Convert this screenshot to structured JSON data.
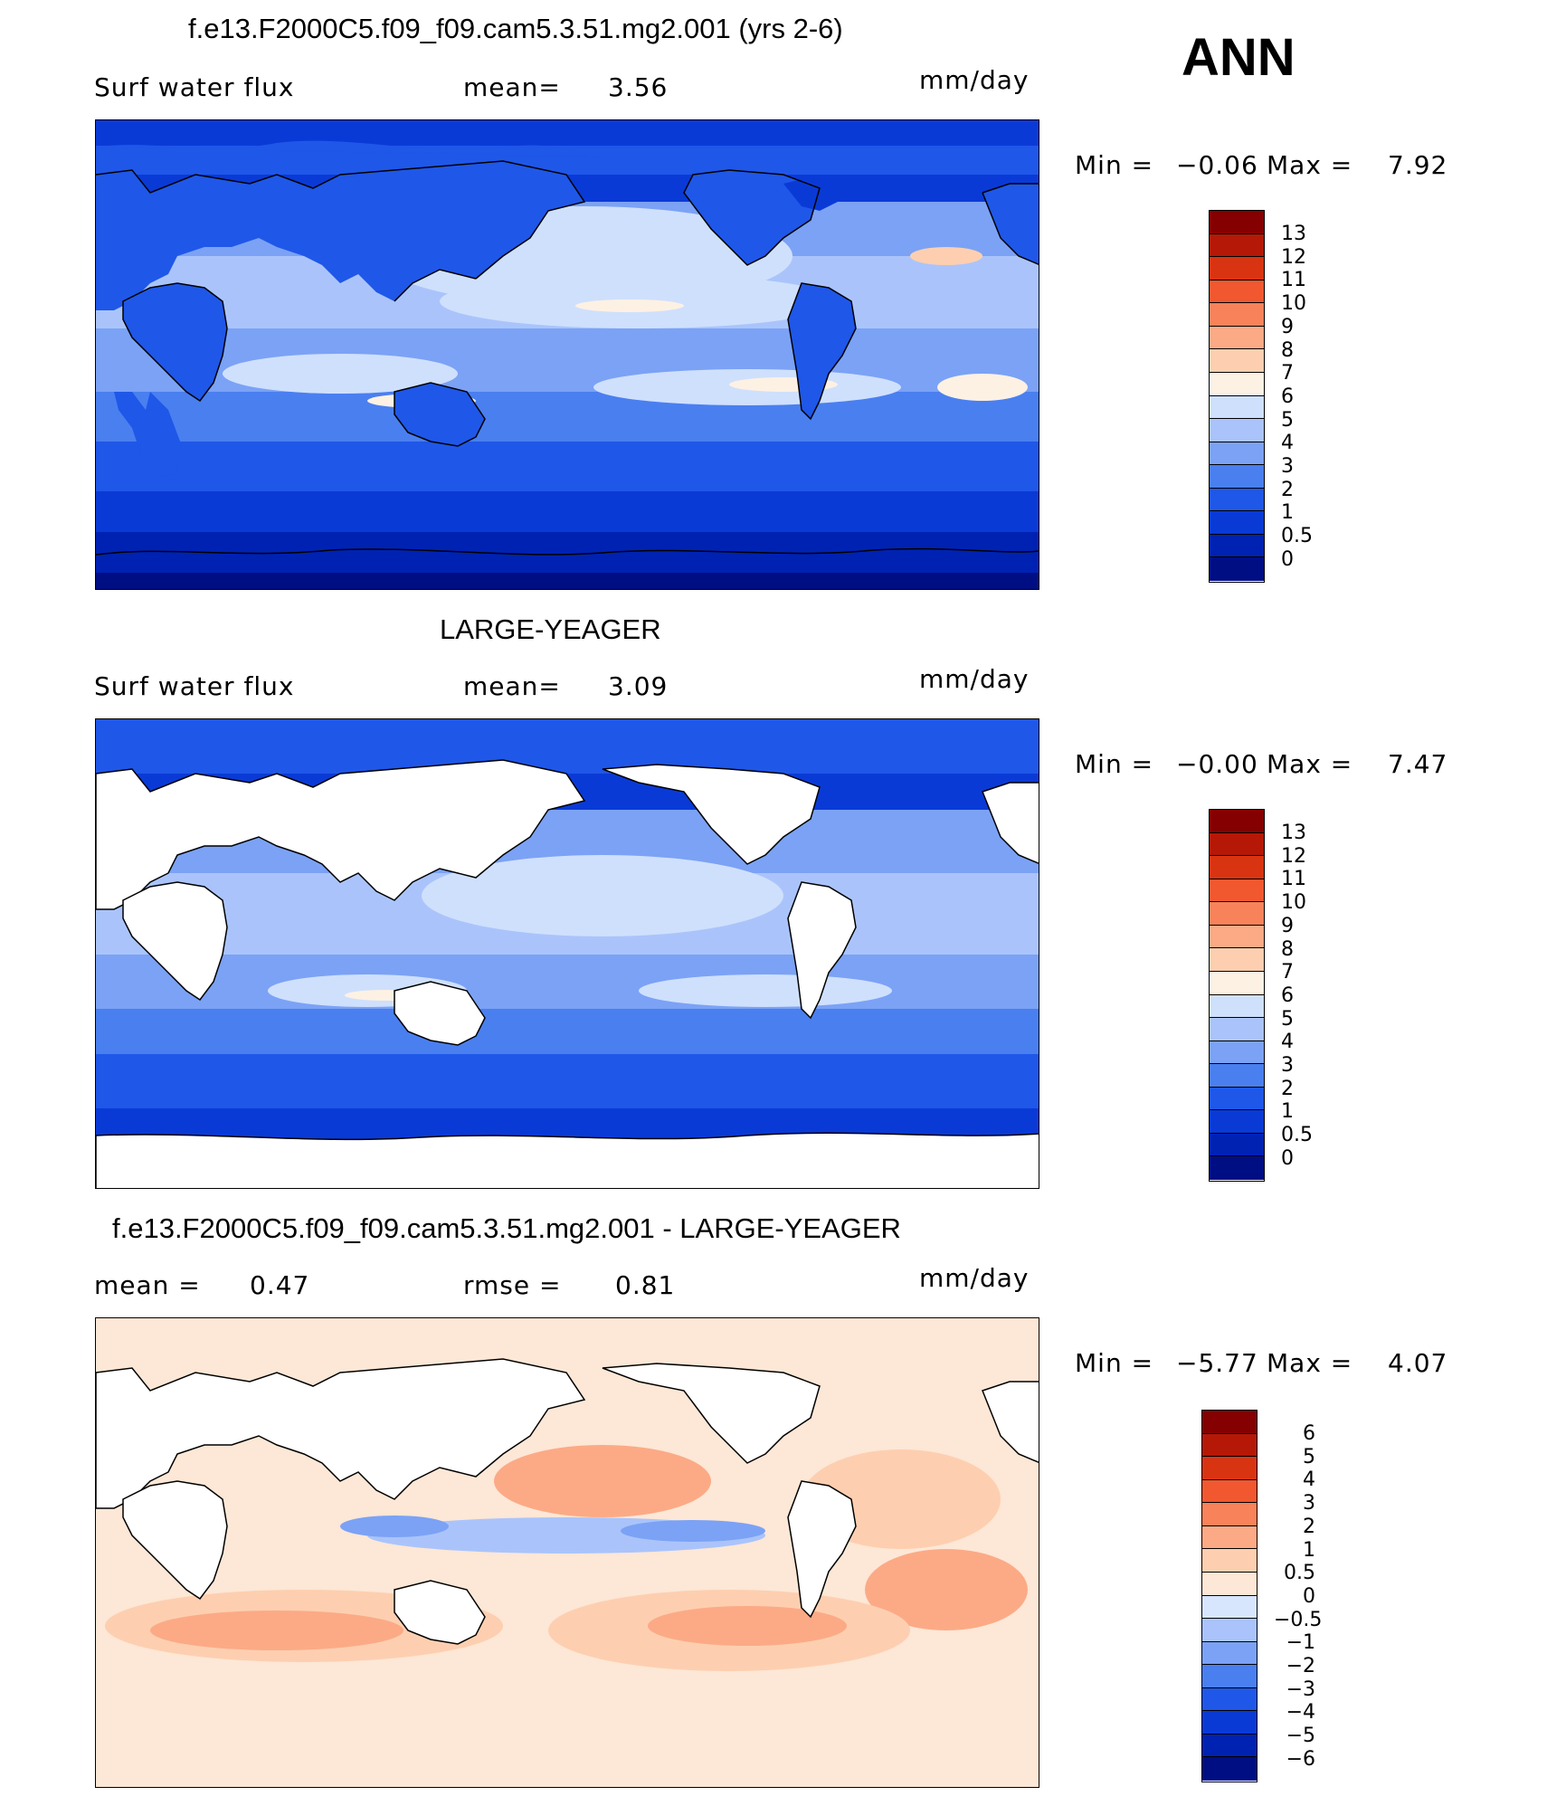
{
  "season": "ANN",
  "colors": {
    "abs_scale": [
      "#000e84",
      "#0022b3",
      "#0a3ad6",
      "#1f57e8",
      "#4a7ff0",
      "#7ba2f5",
      "#aac4fb",
      "#cfe0fd",
      "#fdf1e3",
      "#fdcfb0",
      "#fcaa86",
      "#f8825a",
      "#f15830",
      "#d93412",
      "#b51806",
      "#850000"
    ],
    "diff_scale": [
      "#000e84",
      "#0022b3",
      "#0a3ad6",
      "#1f57e8",
      "#4a7ff0",
      "#7ba2f5",
      "#aac4fb",
      "#d8e6fd",
      "#fde7d6",
      "#fdcfb0",
      "#fcaa86",
      "#f8825a",
      "#f15830",
      "#d93412",
      "#b51806",
      "#850000"
    ],
    "land": "#ffffff",
    "coast": "#000000"
  },
  "panels": [
    {
      "title": "f.e13.F2000C5.f09_f09.cam5.3.51.mg2.001 (yrs 2-6)",
      "left_label": "Surf  water  flux",
      "stat_label": "mean=",
      "stat_value": "3.56",
      "units": "mm/day",
      "min_label": "Min  =",
      "min_value": "−0.06",
      "max_label": "Max  =",
      "max_value": "7.92",
      "colorbar_levels": [
        "13",
        "12",
        "11",
        "10",
        "9",
        "8",
        "7",
        "6",
        "5",
        "4",
        "3",
        "2",
        "1",
        "0.5",
        "0"
      ],
      "field_level": 3.56
    },
    {
      "title": "LARGE-YEAGER",
      "left_label": "Surf  water  flux",
      "stat_label": "mean=",
      "stat_value": "3.09",
      "units": "mm/day",
      "min_label": "Min  =",
      "min_value": "−0.00",
      "max_label": "Max  =",
      "max_value": "7.47",
      "colorbar_levels": [
        "13",
        "12",
        "11",
        "10",
        "9",
        "8",
        "7",
        "6",
        "5",
        "4",
        "3",
        "2",
        "1",
        "0.5",
        "0"
      ],
      "field_level": 3.09
    },
    {
      "title": "f.e13.F2000C5.f09_f09.cam5.3.51.mg2.001 - LARGE-YEAGER",
      "left_label": "mean  =",
      "left_value": "0.47",
      "stat_label": "rmse  =",
      "stat_value": "0.81",
      "units": "mm/day",
      "min_label": "Min  =",
      "min_value": "−5.77",
      "max_label": "Max  =",
      "max_value": "4.07",
      "colorbar_levels": [
        "6",
        "5",
        "4",
        "3",
        "2",
        "1",
        "0.5",
        "0",
        "−0.5",
        "−1",
        "−2",
        "−3",
        "−4",
        "−5",
        "−6"
      ],
      "field_level": 0.47
    }
  ]
}
